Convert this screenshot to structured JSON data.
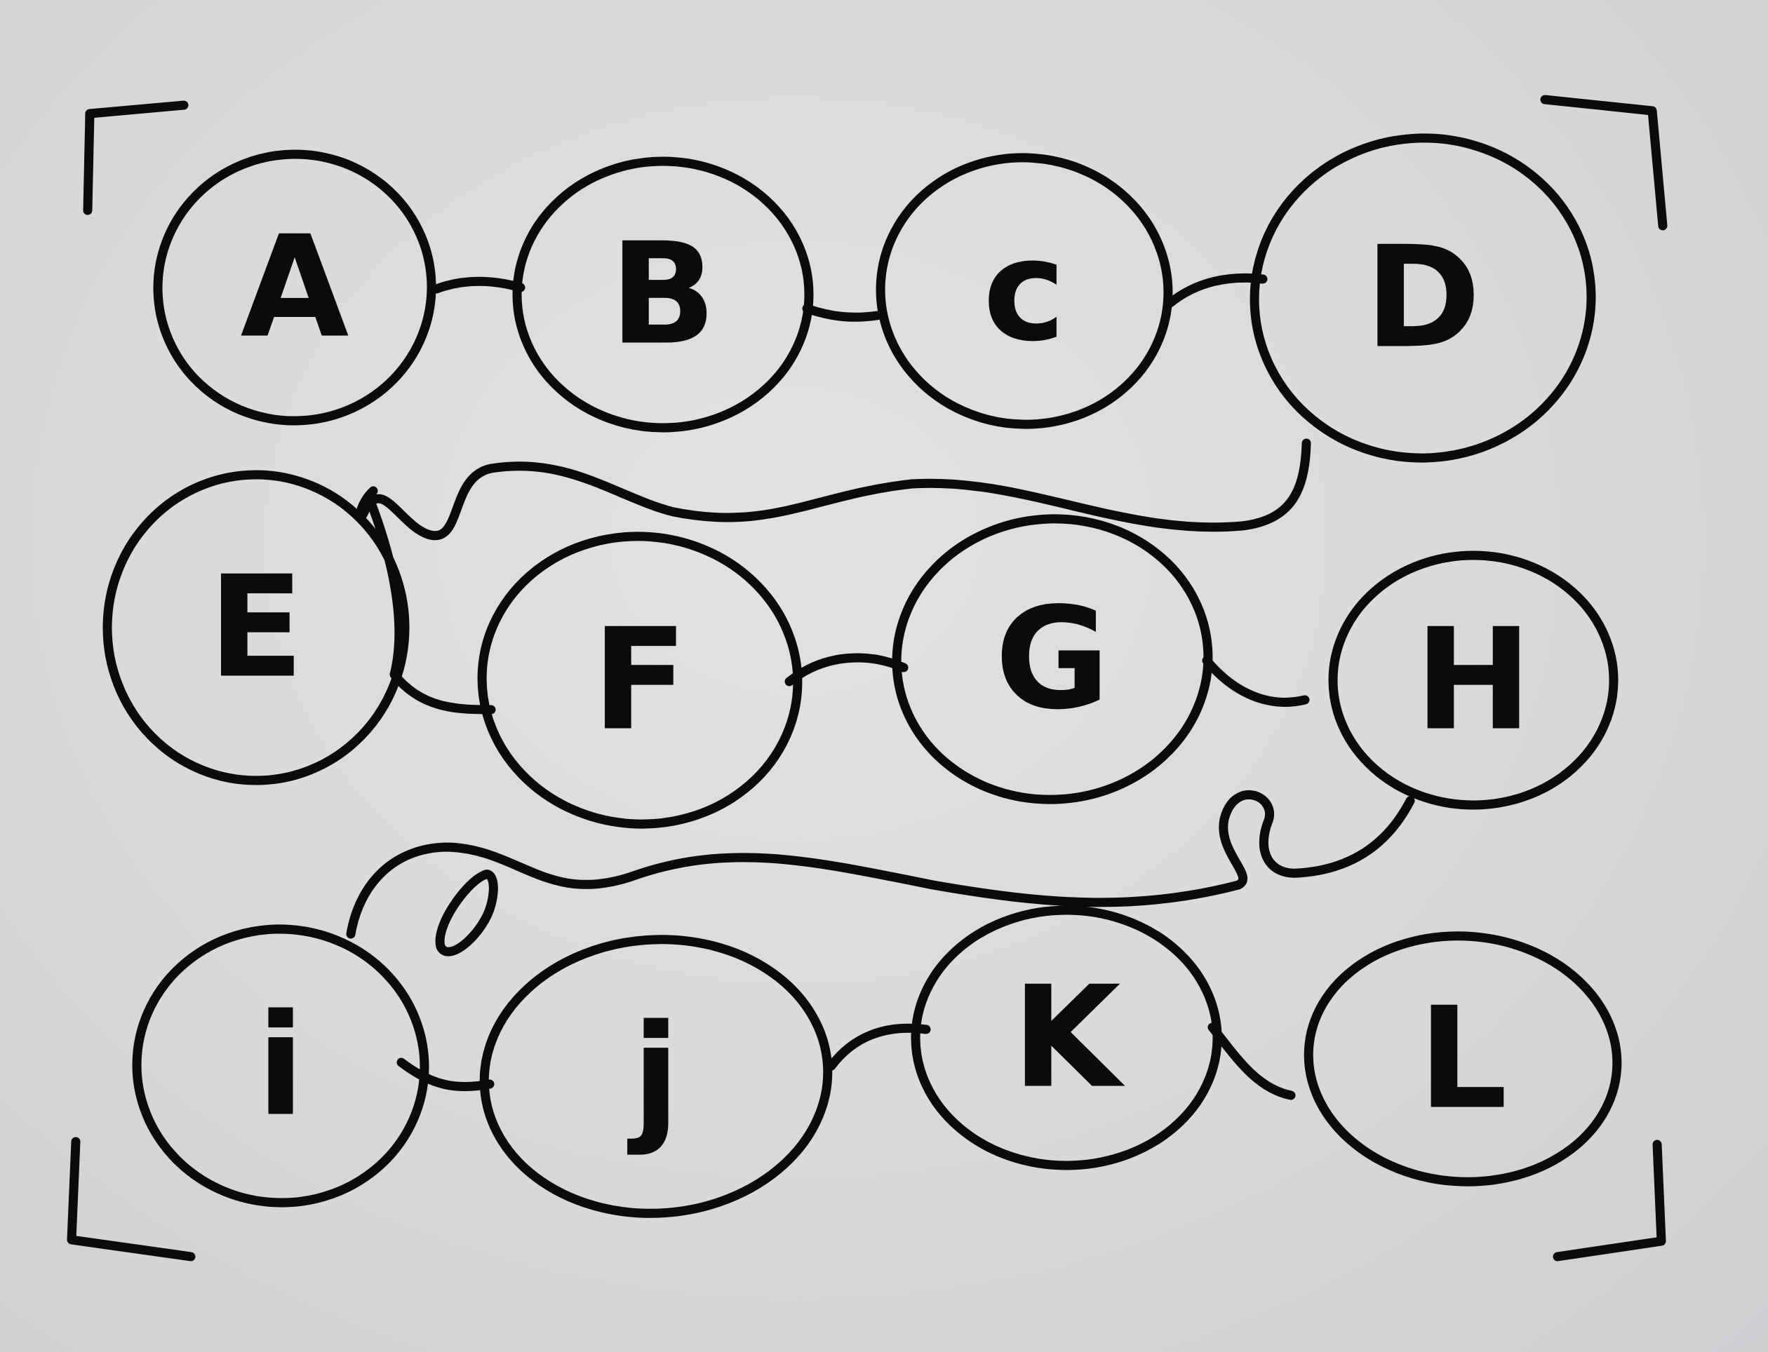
{
  "diagram": {
    "nodes": [
      {
        "id": "A",
        "label": "A"
      },
      {
        "id": "B",
        "label": "B"
      },
      {
        "id": "C",
        "label": "c"
      },
      {
        "id": "D",
        "label": "D"
      },
      {
        "id": "E",
        "label": "E"
      },
      {
        "id": "F",
        "label": "F"
      },
      {
        "id": "G",
        "label": "G"
      },
      {
        "id": "H",
        "label": "H"
      },
      {
        "id": "I",
        "label": "i"
      },
      {
        "id": "J",
        "label": "j"
      },
      {
        "id": "K",
        "label": "K"
      },
      {
        "id": "L",
        "label": "L"
      }
    ],
    "edges": [
      [
        "A",
        "B"
      ],
      [
        "B",
        "C"
      ],
      [
        "C",
        "D"
      ],
      [
        "D",
        "E"
      ],
      [
        "E",
        "F"
      ],
      [
        "F",
        "G"
      ],
      [
        "G",
        "H"
      ],
      [
        "H",
        "I"
      ],
      [
        "I",
        "J"
      ],
      [
        "J",
        "K"
      ],
      [
        "K",
        "L"
      ]
    ],
    "ink_color": "#0c0a0b",
    "paper_color": "#d9d8da"
  }
}
